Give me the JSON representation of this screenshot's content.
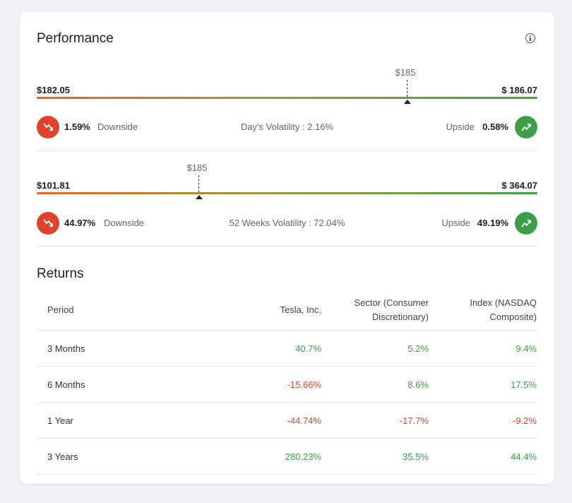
{
  "performance": {
    "title": "Performance",
    "day": {
      "low": "$182.05",
      "high": "$ 186.07",
      "marker": "$185",
      "downside_pct": "1.59%",
      "downside_label": "Downside",
      "volatility": "Day's Volatility :  2.16%",
      "upside_label": "Upside",
      "upside_pct": "0.58%"
    },
    "weeks52": {
      "low": "$101.81",
      "high": "$ 364.07",
      "marker": "$185",
      "downside_pct": "44.97%",
      "downside_label": "Downside",
      "volatility": "52 Weeks Volatility :  72.04%",
      "upside_label": "Upside",
      "upside_pct": "49.19%"
    }
  },
  "returns": {
    "title": "Returns",
    "headers": [
      "Period",
      "Tesla, Inc.",
      "Sector (Consumer Discretionary)",
      "Index (NASDAQ Composite)"
    ],
    "header_lines": {
      "sector_1": "Sector (Consumer",
      "sector_2": "Discretionary)",
      "index_1": "Index (NASDAQ",
      "index_2": "Composite)"
    },
    "rows": [
      {
        "period": "3 Months",
        "stock": "40.7%",
        "sector": "5.2%",
        "index": "9.4%"
      },
      {
        "period": "6 Months",
        "stock": "-15.66%",
        "sector": "8.6%",
        "index": "17.5%"
      },
      {
        "period": "1 Year",
        "stock": "-44.74%",
        "sector": "-17.7%",
        "index": "-9.2%"
      },
      {
        "period": "3 Years",
        "stock": "280.23%",
        "sector": "35.5%",
        "index": "44.4%"
      }
    ]
  },
  "colors": {
    "positive": "#3c9e48",
    "negative": "#e0432b"
  },
  "icons": {
    "downside": "trend-down-icon",
    "upside": "trend-up-icon",
    "info": "info-icon"
  }
}
